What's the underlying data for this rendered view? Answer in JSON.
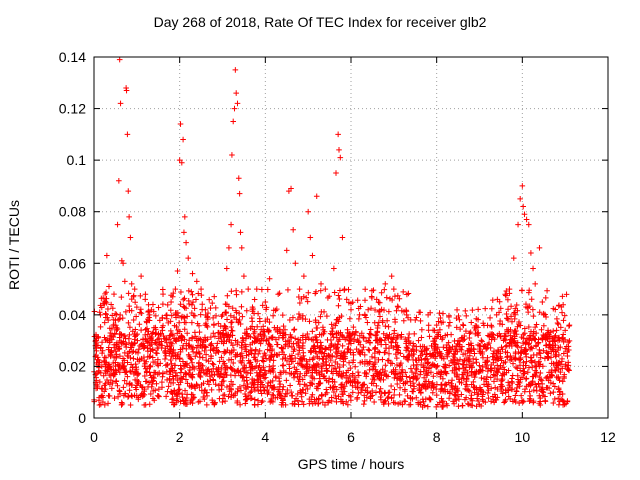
{
  "chart_data": {
    "type": "scatter",
    "title": "Day 268 of 2018, Rate Of TEC Index for receiver glb2",
    "xlabel": "GPS time / hours",
    "ylabel": "ROTI / TECUs",
    "xlim": [
      0,
      12
    ],
    "ylim": [
      0,
      0.14
    ],
    "xticks": [
      0,
      2,
      4,
      6,
      8,
      10,
      12
    ],
    "yticks": [
      0,
      0.02,
      0.04,
      0.06,
      0.08,
      0.1,
      0.12,
      0.14
    ],
    "xtick_labels": [
      "0",
      "2",
      "4",
      "6",
      "8",
      "10",
      "12"
    ],
    "ytick_labels": [
      "0",
      "0.02",
      "0.04",
      "0.06",
      "0.08",
      "0.1",
      "0.12",
      "0.14"
    ],
    "grid": true,
    "marker": "+",
    "color": "#ff0000",
    "data_range_x": [
      0,
      11.1
    ],
    "series": [
      {
        "name": "ROTI",
        "points": [
          [
            0.05,
            0.03
          ],
          [
            0.15,
            0.04
          ],
          [
            0.25,
            0.037
          ],
          [
            0.3,
            0.063
          ],
          [
            0.35,
            0.051
          ],
          [
            0.4,
            0.044
          ],
          [
            0.45,
            0.036
          ],
          [
            0.55,
            0.075
          ],
          [
            0.58,
            0.092
          ],
          [
            0.6,
            0.139
          ],
          [
            0.62,
            0.122
          ],
          [
            0.65,
            0.061
          ],
          [
            0.68,
            0.06
          ],
          [
            0.72,
            0.053
          ],
          [
            0.75,
            0.128
          ],
          [
            0.76,
            0.127
          ],
          [
            0.78,
            0.11
          ],
          [
            0.8,
            0.088
          ],
          [
            0.82,
            0.078
          ],
          [
            0.85,
            0.07
          ],
          [
            0.88,
            0.052
          ],
          [
            0.92,
            0.047
          ],
          [
            0.95,
            0.05
          ],
          [
            1.0,
            0.043
          ],
          [
            1.1,
            0.055
          ],
          [
            1.2,
            0.048
          ],
          [
            1.3,
            0.04
          ],
          [
            1.4,
            0.035
          ],
          [
            1.6,
            0.034
          ],
          [
            1.8,
            0.045
          ],
          [
            1.9,
            0.05
          ],
          [
            1.95,
            0.057
          ],
          [
            2.0,
            0.1
          ],
          [
            2.02,
            0.114
          ],
          [
            2.05,
            0.099
          ],
          [
            2.08,
            0.108
          ],
          [
            2.1,
            0.072
          ],
          [
            2.12,
            0.078
          ],
          [
            2.15,
            0.068
          ],
          [
            2.2,
            0.062
          ],
          [
            2.3,
            0.056
          ],
          [
            2.4,
            0.053
          ],
          [
            2.5,
            0.05
          ],
          [
            2.6,
            0.042
          ],
          [
            2.8,
            0.036
          ],
          [
            3.0,
            0.04
          ],
          [
            3.1,
            0.058
          ],
          [
            3.15,
            0.066
          ],
          [
            3.2,
            0.075
          ],
          [
            3.22,
            0.102
          ],
          [
            3.25,
            0.115
          ],
          [
            3.28,
            0.12
          ],
          [
            3.3,
            0.135
          ],
          [
            3.32,
            0.126
          ],
          [
            3.35,
            0.122
          ],
          [
            3.38,
            0.093
          ],
          [
            3.4,
            0.087
          ],
          [
            3.42,
            0.072
          ],
          [
            3.45,
            0.066
          ],
          [
            3.5,
            0.055
          ],
          [
            3.6,
            0.05
          ],
          [
            3.7,
            0.043
          ],
          [
            3.8,
            0.05
          ],
          [
            4.0,
            0.045
          ],
          [
            4.1,
            0.054
          ],
          [
            4.3,
            0.048
          ],
          [
            4.5,
            0.065
          ],
          [
            4.55,
            0.088
          ],
          [
            4.6,
            0.089
          ],
          [
            4.65,
            0.073
          ],
          [
            4.7,
            0.06
          ],
          [
            4.8,
            0.05
          ],
          [
            4.9,
            0.055
          ],
          [
            5.0,
            0.08
          ],
          [
            5.05,
            0.07
          ],
          [
            5.1,
            0.063
          ],
          [
            5.2,
            0.086
          ],
          [
            5.3,
            0.052
          ],
          [
            5.4,
            0.05
          ],
          [
            5.6,
            0.058
          ],
          [
            5.65,
            0.095
          ],
          [
            5.7,
            0.11
          ],
          [
            5.72,
            0.104
          ],
          [
            5.75,
            0.101
          ],
          [
            5.8,
            0.07
          ],
          [
            5.85,
            0.05
          ],
          [
            5.9,
            0.046
          ],
          [
            6.0,
            0.042
          ],
          [
            6.2,
            0.04
          ],
          [
            6.4,
            0.042
          ],
          [
            6.6,
            0.046
          ],
          [
            6.8,
            0.052
          ],
          [
            6.95,
            0.055
          ],
          [
            7.0,
            0.05
          ],
          [
            7.1,
            0.043
          ],
          [
            7.3,
            0.04
          ],
          [
            7.5,
            0.038
          ],
          [
            7.8,
            0.04
          ],
          [
            8.0,
            0.036
          ],
          [
            8.2,
            0.032
          ],
          [
            8.5,
            0.03
          ],
          [
            8.8,
            0.029
          ],
          [
            9.0,
            0.028
          ],
          [
            9.2,
            0.032
          ],
          [
            9.4,
            0.04
          ],
          [
            9.6,
            0.048
          ],
          [
            9.7,
            0.05
          ],
          [
            9.8,
            0.062
          ],
          [
            9.9,
            0.075
          ],
          [
            9.95,
            0.085
          ],
          [
            10.0,
            0.09
          ],
          [
            10.02,
            0.082
          ],
          [
            10.05,
            0.079
          ],
          [
            10.1,
            0.077
          ],
          [
            10.15,
            0.075
          ],
          [
            10.2,
            0.064
          ],
          [
            10.25,
            0.058
          ],
          [
            10.3,
            0.052
          ],
          [
            10.4,
            0.066
          ],
          [
            10.5,
            0.04
          ],
          [
            10.6,
            0.034
          ],
          [
            10.8,
            0.034
          ],
          [
            11.0,
            0.034
          ],
          [
            11.1,
            0.036
          ]
        ]
      }
    ]
  }
}
